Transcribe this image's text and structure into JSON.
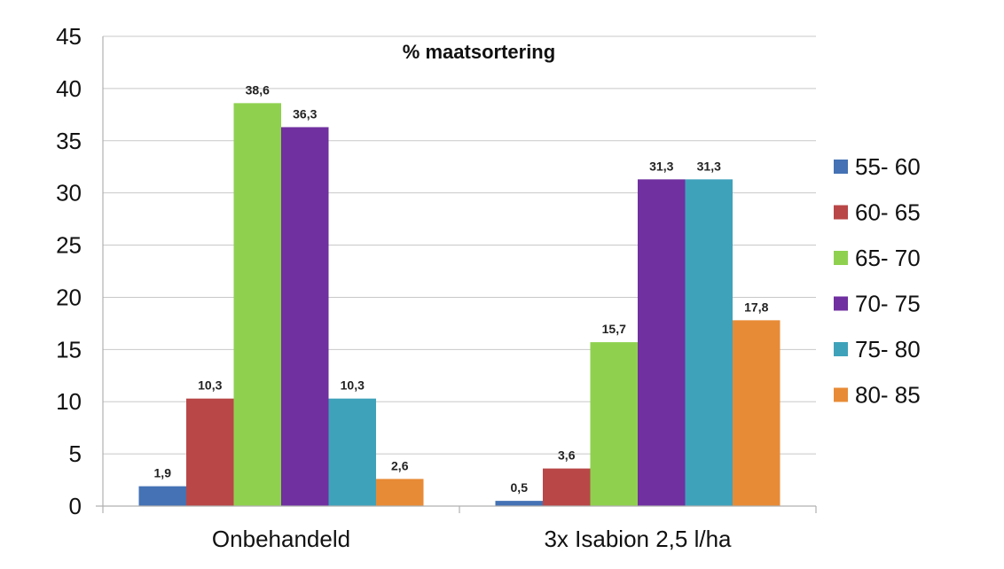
{
  "chart_data": {
    "type": "bar",
    "title": "% maatsortering",
    "xlabel": "",
    "ylabel": "",
    "ylim": [
      0,
      45
    ],
    "yticks": [
      0,
      5,
      10,
      15,
      20,
      25,
      30,
      35,
      40,
      45
    ],
    "grid": true,
    "legend_position": "right",
    "categories": [
      "Onbehandeld",
      "3x Isabion 2,5 l/ha"
    ],
    "series": [
      {
        "name": "55- 60",
        "color": "#4472b4",
        "values": [
          1.9,
          0.5
        ],
        "labels": [
          "1,9",
          "0,5"
        ]
      },
      {
        "name": "60- 65",
        "color": "#b94747",
        "values": [
          10.3,
          3.6
        ],
        "labels": [
          "10,3",
          "3,6"
        ]
      },
      {
        "name": "65- 70",
        "color": "#8fd14f",
        "values": [
          38.6,
          15.7
        ],
        "labels": [
          "38,6",
          "15,7"
        ]
      },
      {
        "name": "70- 75",
        "color": "#7030a0",
        "values": [
          36.3,
          31.3
        ],
        "labels": [
          "36,3",
          "31,3"
        ]
      },
      {
        "name": "75- 80",
        "color": "#3fa2bb",
        "values": [
          10.3,
          31.3
        ],
        "labels": [
          "10,3",
          "31,3"
        ]
      },
      {
        "name": "80- 85",
        "color": "#e88b36",
        "values": [
          2.6,
          17.8
        ],
        "labels": [
          "2,6",
          "17,8"
        ]
      }
    ]
  }
}
